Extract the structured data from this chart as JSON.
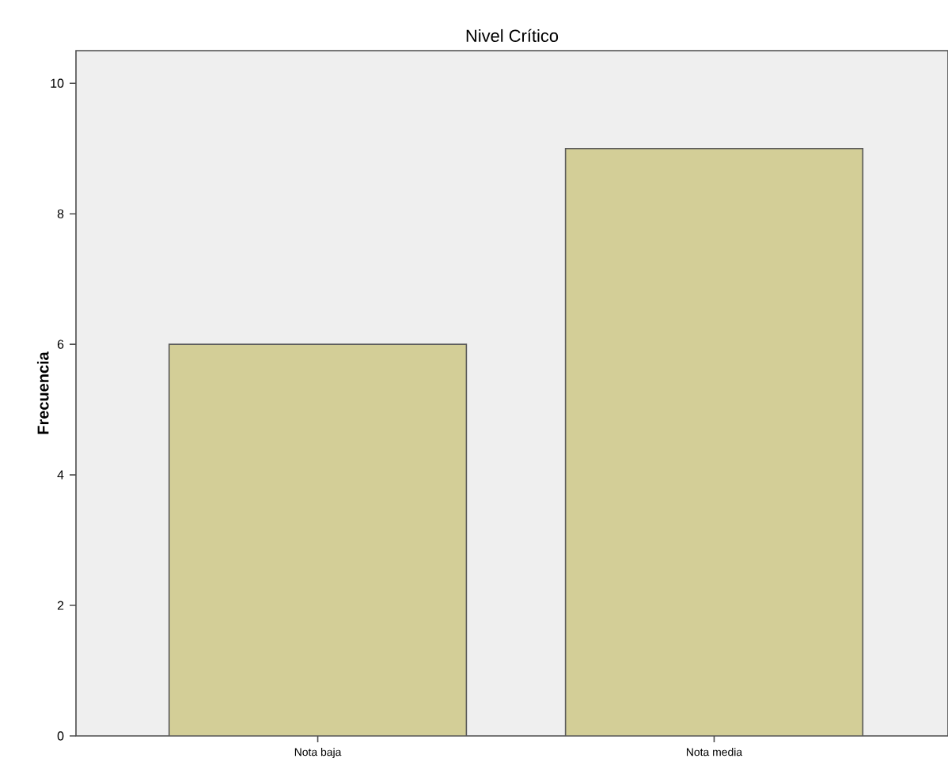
{
  "chart_data": {
    "type": "bar",
    "title": "Nivel Crítico",
    "ylabel": "Frecuencia",
    "categories": [
      "Nota baja",
      "Nota media"
    ],
    "values": [
      6,
      9
    ],
    "color": "#d3ce97",
    "ylim": [
      0,
      10.5
    ],
    "yticks": [
      0,
      2,
      4,
      6,
      8,
      10
    ],
    "grid": false
  }
}
